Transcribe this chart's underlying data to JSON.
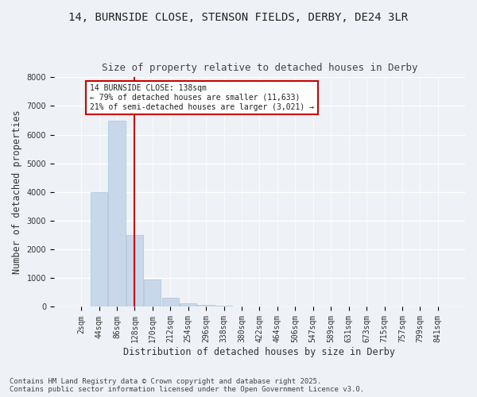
{
  "title1": "14, BURNSIDE CLOSE, STENSON FIELDS, DERBY, DE24 3LR",
  "title2": "Size of property relative to detached houses in Derby",
  "xlabel": "Distribution of detached houses by size in Derby",
  "ylabel": "Number of detached properties",
  "bar_color": "#c8d8ea",
  "bar_edge_color": "#a8c4d8",
  "vline_color": "#cc0000",
  "vline_x_index": 3,
  "categories": [
    "2sqm",
    "44sqm",
    "86sqm",
    "128sqm",
    "170sqm",
    "212sqm",
    "254sqm",
    "296sqm",
    "338sqm",
    "380sqm",
    "422sqm",
    "464sqm",
    "506sqm",
    "547sqm",
    "589sqm",
    "631sqm",
    "673sqm",
    "715sqm",
    "757sqm",
    "799sqm",
    "841sqm"
  ],
  "values": [
    25,
    4000,
    6500,
    2500,
    950,
    330,
    130,
    60,
    30,
    5,
    0,
    0,
    0,
    0,
    0,
    0,
    0,
    0,
    0,
    0,
    0
  ],
  "ylim": [
    0,
    8000
  ],
  "yticks": [
    0,
    1000,
    2000,
    3000,
    4000,
    5000,
    6000,
    7000,
    8000
  ],
  "annotation_line1": "14 BURNSIDE CLOSE: 138sqm",
  "annotation_line2": "← 79% of detached houses are smaller (11,633)",
  "annotation_line3": "21% of semi-detached houses are larger (3,021) →",
  "annotation_box_color": "#ffffff",
  "annotation_box_edge": "#cc0000",
  "footnote": "Contains HM Land Registry data © Crown copyright and database right 2025.\nContains public sector information licensed under the Open Government Licence v3.0.",
  "bg_color": "#eef2f6",
  "plot_bg_color": "#eef2f6",
  "grid_color": "#ffffff",
  "title_fontsize": 10,
  "subtitle_fontsize": 9,
  "tick_fontsize": 7,
  "label_fontsize": 8.5,
  "footnote_fontsize": 6.5
}
